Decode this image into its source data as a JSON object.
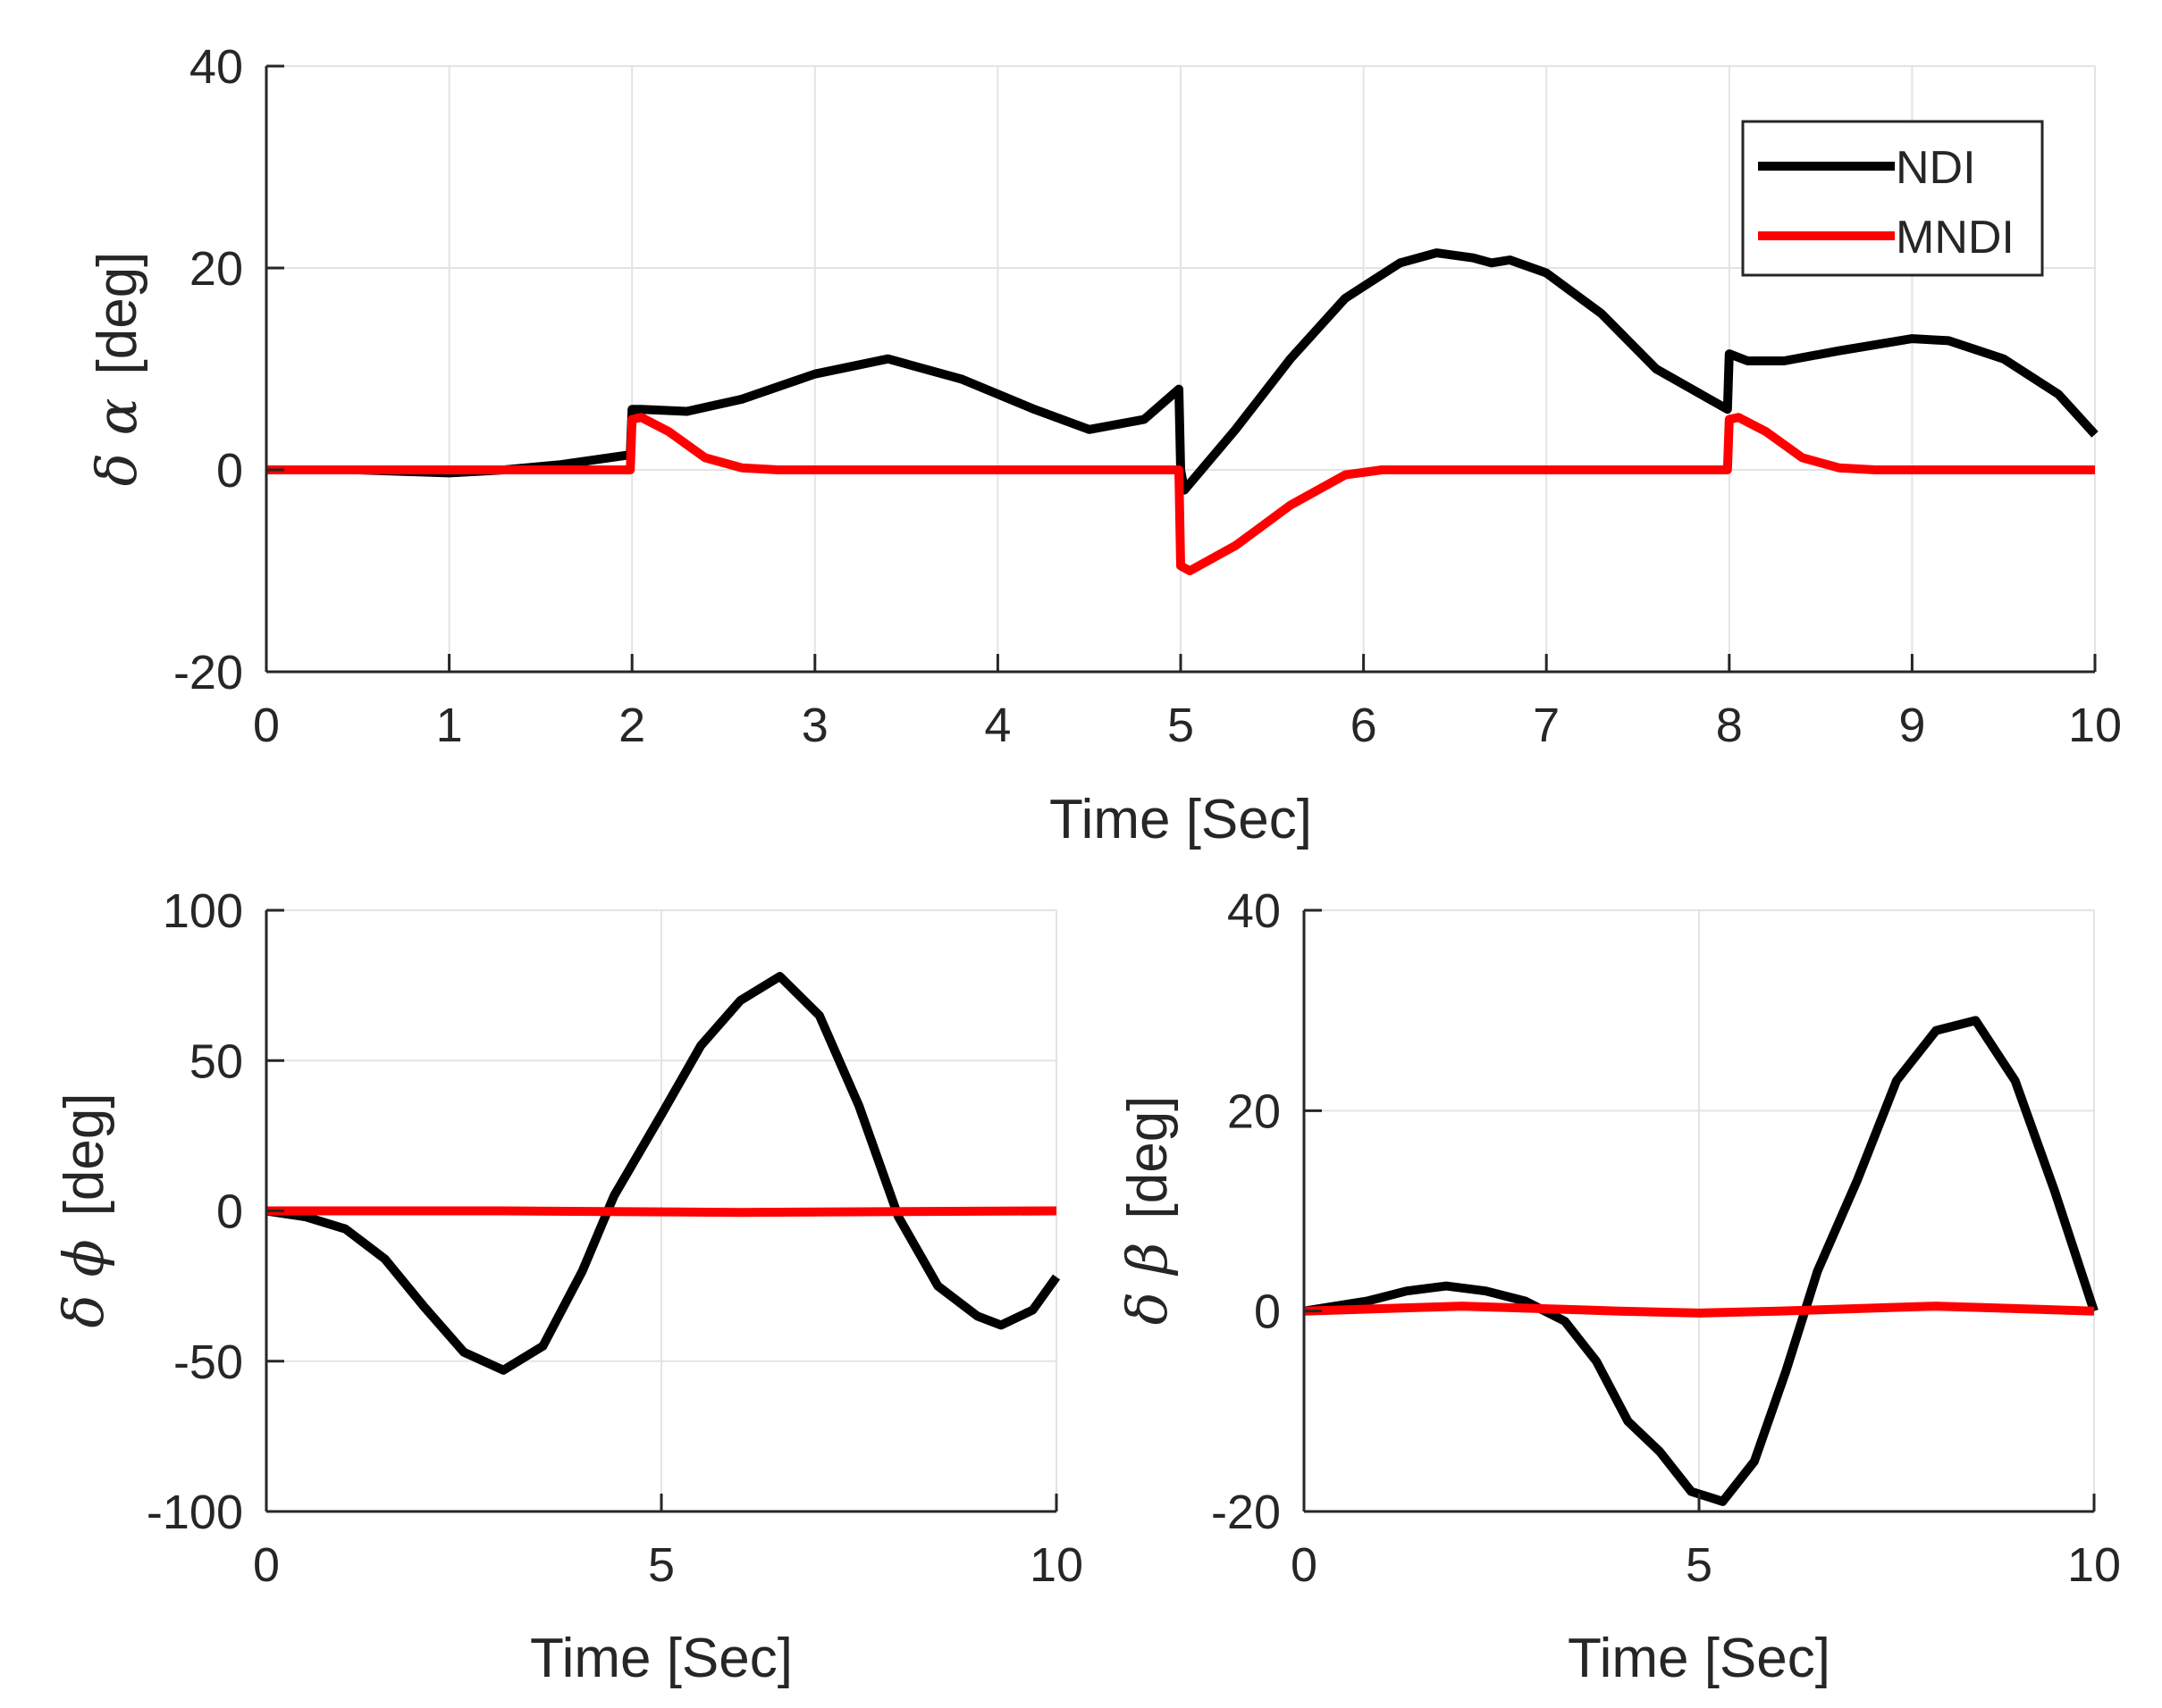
{
  "figure": {
    "background": "#ffffff",
    "grid_color": "#e3e3e3",
    "axis_color": "#262626"
  },
  "chart_data": [
    {
      "id": "alpha",
      "type": "line",
      "xlabel": "Time  [Sec]",
      "ylabel": {
        "symbol": "δ α",
        "unit": "[deg]"
      },
      "xlim": [
        0,
        10
      ],
      "ylim": [
        -20,
        40
      ],
      "xticks": [
        0,
        1,
        2,
        3,
        4,
        5,
        6,
        7,
        8,
        9,
        10
      ],
      "yticks": [
        -20,
        0,
        20,
        40
      ],
      "xtick_labels": [
        "0",
        "1",
        "2",
        "3",
        "4",
        "5",
        "6",
        "7",
        "8",
        "9",
        "10"
      ],
      "ytick_labels": [
        "-20",
        "0",
        "20",
        "40"
      ],
      "grid": true,
      "legend": {
        "position": "top-right",
        "entries": [
          "NDI",
          "MNDI"
        ]
      },
      "series": [
        {
          "name": "NDI",
          "color": "#000000",
          "x": [
            0,
            0.5,
            1,
            1.3,
            1.6,
            1.99,
            2,
            2.05,
            2.3,
            2.6,
            3,
            3.4,
            3.8,
            4.2,
            4.5,
            4.8,
            4.99,
            5,
            5.02,
            5.3,
            5.6,
            5.9,
            6.2,
            6.4,
            6.6,
            6.7,
            6.8,
            7.0,
            7.3,
            7.6,
            7.99,
            8,
            8.1,
            8.3,
            8.6,
            9,
            9.2,
            9.5,
            9.8,
            10
          ],
          "y": [
            0,
            0,
            -0.3,
            0,
            0.5,
            1.5,
            6,
            6,
            5.8,
            7,
            9.5,
            11,
            9,
            6,
            4,
            5,
            8,
            0,
            -2,
            4,
            11,
            17,
            20.5,
            21.5,
            21,
            20.5,
            20.8,
            19.5,
            15.5,
            10,
            6,
            11.5,
            10.8,
            10.8,
            11.8,
            13,
            12.8,
            11,
            7.5,
            3.5
          ]
        },
        {
          "name": "MNDI",
          "color": "#ff0000",
          "x": [
            0,
            1.99,
            2,
            2.05,
            2.2,
            2.4,
            2.6,
            2.8,
            4.99,
            5,
            5.05,
            5.3,
            5.6,
            5.9,
            6.1,
            6.5,
            7.99,
            8,
            8.05,
            8.2,
            8.4,
            8.6,
            8.8,
            10
          ],
          "y": [
            0,
            0,
            5,
            5.2,
            3.8,
            1.2,
            0.2,
            0,
            0,
            -9.5,
            -10,
            -7.5,
            -3.5,
            -0.5,
            0,
            0,
            0,
            5,
            5.2,
            3.8,
            1.2,
            0.2,
            0,
            0
          ]
        }
      ]
    },
    {
      "id": "phi",
      "type": "line",
      "xlabel": "Time  [Sec]",
      "ylabel": {
        "symbol": "δ ϕ",
        "unit": "[deg]"
      },
      "xlim": [
        0,
        10
      ],
      "ylim": [
        -100,
        100
      ],
      "xticks": [
        0,
        5,
        10
      ],
      "yticks": [
        -100,
        -50,
        0,
        50,
        100
      ],
      "xtick_labels": [
        "0",
        "5",
        "10"
      ],
      "ytick_labels": [
        "-100",
        "-50",
        "0",
        "50",
        "100"
      ],
      "grid": true,
      "series": [
        {
          "name": "NDI",
          "color": "#000000",
          "x": [
            0,
            0.5,
            1.0,
            1.5,
            2.0,
            2.5,
            3.0,
            3.5,
            4.0,
            4.4,
            5.0,
            5.5,
            6.0,
            6.5,
            7.0,
            7.5,
            8.0,
            8.5,
            9.0,
            9.3,
            9.7,
            10
          ],
          "y": [
            0,
            -2,
            -6,
            -16,
            -32,
            -47,
            -53,
            -45,
            -20,
            5,
            32,
            55,
            70,
            78,
            65,
            35,
            -2,
            -25,
            -35,
            -38,
            -33,
            -22
          ]
        },
        {
          "name": "MNDI",
          "color": "#ff0000",
          "x": [
            0,
            3,
            6,
            10
          ],
          "y": [
            0,
            0,
            -0.5,
            0
          ]
        }
      ]
    },
    {
      "id": "beta",
      "type": "line",
      "xlabel": "Time  [Sec]",
      "ylabel": {
        "symbol": "δ β",
        "unit": "[deg]"
      },
      "xlim": [
        0,
        10
      ],
      "ylim": [
        -20,
        40
      ],
      "xticks": [
        0,
        5,
        10
      ],
      "yticks": [
        -20,
        0,
        20,
        40
      ],
      "xtick_labels": [
        "0",
        "5",
        "10"
      ],
      "ytick_labels": [
        "-20",
        "0",
        "20",
        "40"
      ],
      "grid": true,
      "series": [
        {
          "name": "NDI",
          "color": "#000000",
          "x": [
            0,
            0.8,
            1.3,
            1.8,
            2.3,
            2.8,
            3.3,
            3.7,
            4.1,
            4.5,
            4.9,
            5.3,
            5.7,
            6.1,
            6.5,
            7.0,
            7.5,
            8.0,
            8.5,
            9.0,
            9.5,
            10
          ],
          "y": [
            0,
            1,
            2,
            2.5,
            2,
            1,
            -1,
            -5,
            -11,
            -14,
            -18,
            -19,
            -15,
            -6,
            4,
            13,
            23,
            28,
            29,
            23,
            12,
            0
          ]
        },
        {
          "name": "MNDI",
          "color": "#ff0000",
          "x": [
            0,
            2,
            4,
            5,
            6,
            8,
            10
          ],
          "y": [
            0,
            0.5,
            0,
            -0.2,
            0,
            0.5,
            0
          ]
        }
      ]
    }
  ]
}
